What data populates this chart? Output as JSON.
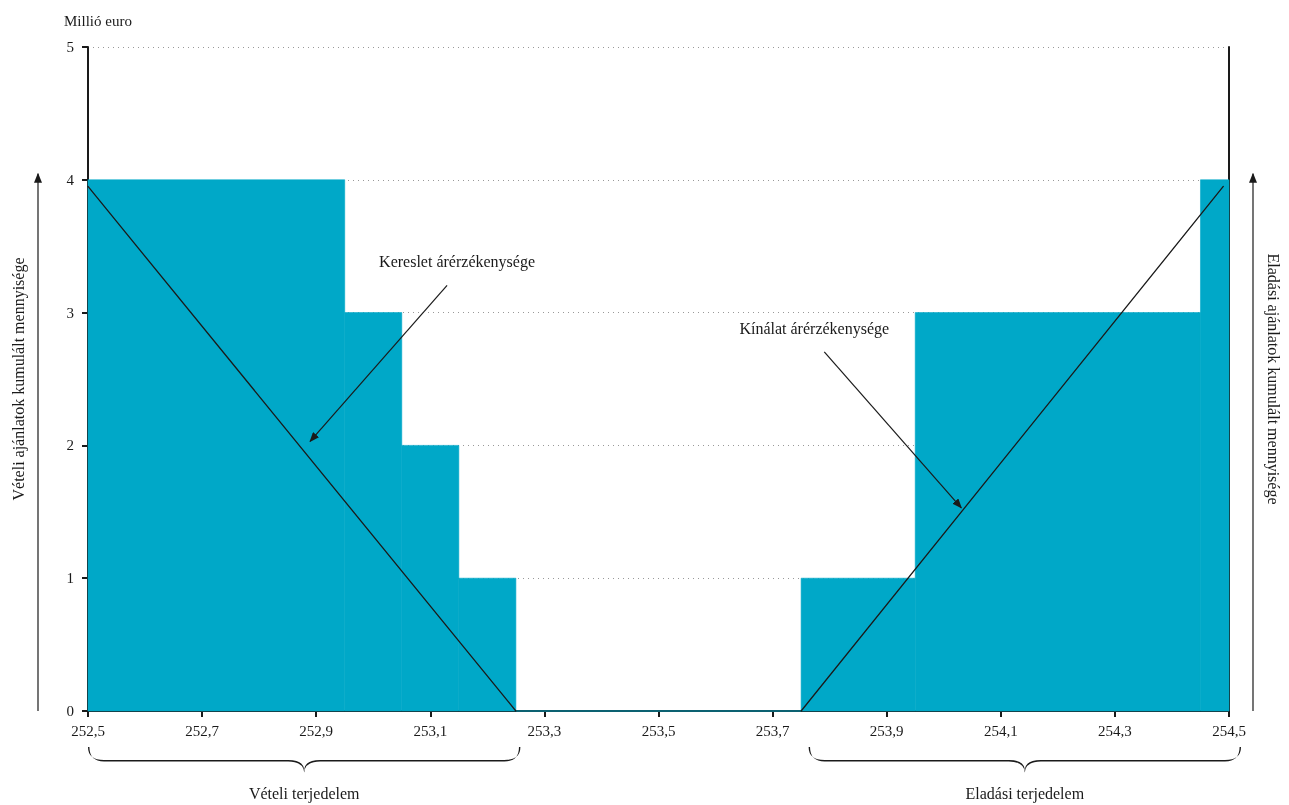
{
  "chart_data": {
    "type": "histogram",
    "ylabel": "Vételi ajánlatok kumulált mennyisége",
    "y2label": "Eladási ajánlatok kumulált mennyisége",
    "series": [
      {
        "color": "#00a8c8",
        "bins": [
          252.5,
          252.95,
          253.05,
          253.15,
          253.25,
          253.75,
          253.95,
          254.45,
          254.5
        ],
        "values": [
          4,
          3,
          2,
          1,
          0,
          1,
          3,
          4
        ]
      },
      {
        "type": "line",
        "color": "#1a1a1a",
        "x": [
          252.5,
          253.25
        ],
        "values": [
          3.95,
          0
        ]
      },
      {
        "type": "line",
        "color": "#1a1a1a",
        "x": [
          253.75,
          254.49
        ],
        "values": [
          0,
          3.95
        ]
      }
    ],
    "xlim": [
      252.5,
      254.5
    ],
    "xticks": [
      {
        "value": 252.5,
        "label": "252,5"
      },
      {
        "value": 252.7,
        "label": "252,7"
      },
      {
        "value": 252.9,
        "label": "252,9"
      },
      {
        "value": 253.1,
        "label": "253,1"
      },
      {
        "value": 253.3,
        "label": "253,3"
      },
      {
        "value": 253.5,
        "label": "253,5"
      },
      {
        "value": 253.7,
        "label": "253,7"
      },
      {
        "value": 253.9,
        "label": "253,9"
      },
      {
        "value": 254.1,
        "label": "254,1"
      },
      {
        "value": 254.3,
        "label": "254,3"
      },
      {
        "value": 254.5,
        "label": "254,5"
      }
    ],
    "ylim": [
      0,
      5
    ],
    "yticks": [
      0,
      1,
      2,
      3,
      4,
      5
    ],
    "grid": "y",
    "marker": "none",
    "line_style": "solid",
    "annotations": [
      "Millió euro",
      {
        "text": "Kereslet árérzékenysége",
        "x": 252.88,
        "y": 2
      },
      {
        "text": "Kínálat árérzékenysége",
        "x": 254.02,
        "y": 1.5
      },
      "Vételi terjedelem",
      "Eladási terjedelem"
    ]
  }
}
